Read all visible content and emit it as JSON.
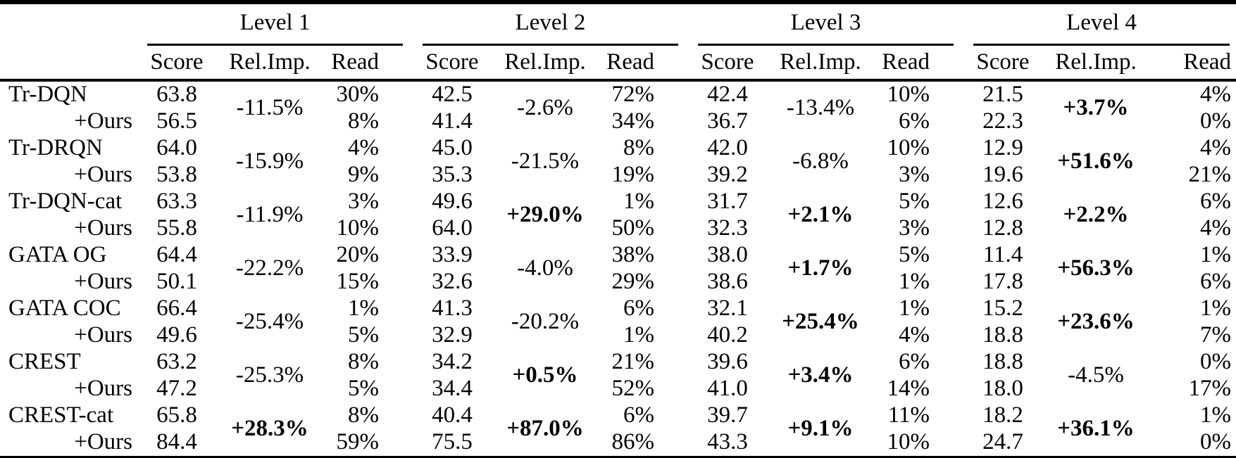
{
  "colors": {
    "text": "#000000",
    "rules": "#000000",
    "background": "#ffffff"
  },
  "table": {
    "levels": [
      "Level 1",
      "Level 2",
      "Level 3",
      "Level 4"
    ],
    "subheaders": [
      "Score",
      "Rel.Imp.",
      "Read"
    ],
    "ours_label": "+Ours",
    "rows": [
      {
        "method": "Tr-DQN",
        "ours_label": "+Ours",
        "levels": [
          {
            "score": "63.8",
            "ours_score": "56.5",
            "relimp": "-11.5%",
            "relimp_bold": false,
            "read": "30%",
            "ours_read": "8%"
          },
          {
            "score": "42.5",
            "ours_score": "41.4",
            "relimp": "-2.6%",
            "relimp_bold": false,
            "read": "72%",
            "ours_read": "34%"
          },
          {
            "score": "42.4",
            "ours_score": "36.7",
            "relimp": "-13.4%",
            "relimp_bold": false,
            "read": "10%",
            "ours_read": "6%"
          },
          {
            "score": "21.5",
            "ours_score": "22.3",
            "relimp": "+3.7%",
            "relimp_bold": true,
            "read": "4%",
            "ours_read": "0%"
          }
        ]
      },
      {
        "method": "Tr-DRQN",
        "ours_label": "+Ours",
        "levels": [
          {
            "score": "64.0",
            "ours_score": "53.8",
            "relimp": "-15.9%",
            "relimp_bold": false,
            "read": "4%",
            "ours_read": "9%"
          },
          {
            "score": "45.0",
            "ours_score": "35.3",
            "relimp": "-21.5%",
            "relimp_bold": false,
            "read": "8%",
            "ours_read": "19%"
          },
          {
            "score": "42.0",
            "ours_score": "39.2",
            "relimp": "-6.8%",
            "relimp_bold": false,
            "read": "10%",
            "ours_read": "3%"
          },
          {
            "score": "12.9",
            "ours_score": "19.6",
            "relimp": "+51.6%",
            "relimp_bold": true,
            "read": "4%",
            "ours_read": "21%"
          }
        ]
      },
      {
        "method": "Tr-DQN-cat",
        "ours_label": "+Ours",
        "levels": [
          {
            "score": "63.3",
            "ours_score": "55.8",
            "relimp": "-11.9%",
            "relimp_bold": false,
            "read": "3%",
            "ours_read": "10%"
          },
          {
            "score": "49.6",
            "ours_score": "64.0",
            "relimp": "+29.0%",
            "relimp_bold": true,
            "read": "1%",
            "ours_read": "50%"
          },
          {
            "score": "31.7",
            "ours_score": "32.3",
            "relimp": "+2.1%",
            "relimp_bold": true,
            "read": "5%",
            "ours_read": "3%"
          },
          {
            "score": "12.6",
            "ours_score": "12.8",
            "relimp": "+2.2%",
            "relimp_bold": true,
            "read": "6%",
            "ours_read": "4%"
          }
        ]
      },
      {
        "method": "GATA OG",
        "ours_label": "+Ours",
        "levels": [
          {
            "score": "64.4",
            "ours_score": "50.1",
            "relimp": "-22.2%",
            "relimp_bold": false,
            "read": "20%",
            "ours_read": "15%"
          },
          {
            "score": "33.9",
            "ours_score": "32.6",
            "relimp": "-4.0%",
            "relimp_bold": false,
            "read": "38%",
            "ours_read": "29%"
          },
          {
            "score": "38.0",
            "ours_score": "38.6",
            "relimp": "+1.7%",
            "relimp_bold": true,
            "read": "5%",
            "ours_read": "1%"
          },
          {
            "score": "11.4",
            "ours_score": "17.8",
            "relimp": "+56.3%",
            "relimp_bold": true,
            "read": "1%",
            "ours_read": "6%"
          }
        ]
      },
      {
        "method": "GATA COC",
        "ours_label": "+Ours",
        "levels": [
          {
            "score": "66.4",
            "ours_score": "49.6",
            "relimp": "-25.4%",
            "relimp_bold": false,
            "read": "1%",
            "ours_read": "5%"
          },
          {
            "score": "41.3",
            "ours_score": "32.9",
            "relimp": "-20.2%",
            "relimp_bold": false,
            "read": "6%",
            "ours_read": "1%"
          },
          {
            "score": "32.1",
            "ours_score": "40.2",
            "relimp": "+25.4%",
            "relimp_bold": true,
            "read": "1%",
            "ours_read": "4%"
          },
          {
            "score": "15.2",
            "ours_score": "18.8",
            "relimp": "+23.6%",
            "relimp_bold": true,
            "read": "1%",
            "ours_read": "7%"
          }
        ]
      },
      {
        "method": "CREST",
        "ours_label": "+Ours",
        "levels": [
          {
            "score": "63.2",
            "ours_score": "47.2",
            "relimp": "-25.3%",
            "relimp_bold": false,
            "read": "8%",
            "ours_read": "5%"
          },
          {
            "score": "34.2",
            "ours_score": "34.4",
            "relimp": "+0.5%",
            "relimp_bold": true,
            "read": "21%",
            "ours_read": "52%"
          },
          {
            "score": "39.6",
            "ours_score": "41.0",
            "relimp": "+3.4%",
            "relimp_bold": true,
            "read": "6%",
            "ours_read": "14%"
          },
          {
            "score": "18.8",
            "ours_score": "18.0",
            "relimp": "-4.5%",
            "relimp_bold": false,
            "read": "0%",
            "ours_read": "17%"
          }
        ]
      },
      {
        "method": "CREST-cat",
        "ours_label": "+Ours",
        "levels": [
          {
            "score": "65.8",
            "ours_score": "84.4",
            "relimp": "+28.3%",
            "relimp_bold": true,
            "read": "8%",
            "ours_read": "59%"
          },
          {
            "score": "40.4",
            "ours_score": "75.5",
            "relimp": "+87.0%",
            "relimp_bold": true,
            "read": "6%",
            "ours_read": "86%"
          },
          {
            "score": "39.7",
            "ours_score": "43.3",
            "relimp": "+9.1%",
            "relimp_bold": true,
            "read": "11%",
            "ours_read": "10%"
          },
          {
            "score": "18.2",
            "ours_score": "24.7",
            "relimp": "+36.1%",
            "relimp_bold": true,
            "read": "1%",
            "ours_read": "0%"
          }
        ]
      }
    ]
  }
}
